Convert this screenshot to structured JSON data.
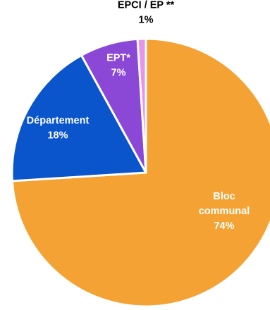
{
  "chart_data": {
    "type": "pie",
    "title": "",
    "slices": [
      {
        "label_lines": [
          "Bloc",
          "communal"
        ],
        "value_label": "74%",
        "value": 74,
        "color": "#F4A233",
        "label_color": "#ffffff"
      },
      {
        "label_lines": [
          "Département"
        ],
        "value_label": "18%",
        "value": 18,
        "color": "#0A55CC",
        "label_color": "#ffffff"
      },
      {
        "label_lines": [
          "EPT*"
        ],
        "value_label": "7%",
        "value": 7,
        "color": "#8B48D6",
        "label_color": "#ffffff"
      },
      {
        "label_lines": [
          "EPCI / EP **"
        ],
        "value_label": "1%",
        "value": 1,
        "color": "#EA94E8",
        "label_color": "#000000"
      }
    ],
    "start_angle_deg": 0,
    "direction": "clockwise",
    "slice_border_color": "#ffffff"
  }
}
